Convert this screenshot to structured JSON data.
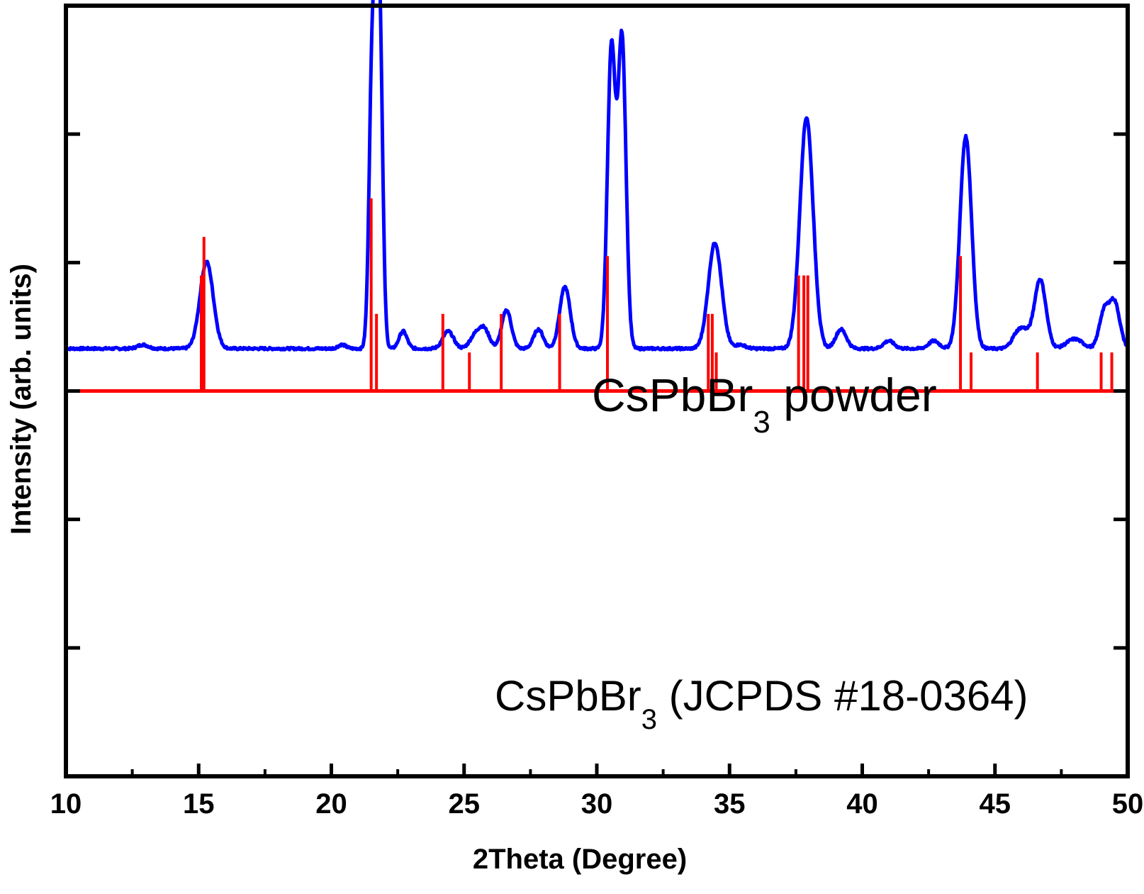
{
  "chart_data": {
    "type": "line",
    "xlabel": "2Theta (Degree)",
    "ylabel": "Intensity (arb. units)",
    "xlim": [
      10,
      50
    ],
    "ylim": [
      -1.0,
      1.0
    ],
    "x_ticks": [
      10,
      15,
      20,
      25,
      30,
      35,
      40,
      45,
      50
    ],
    "x_tick_labels": [
      "10",
      "15",
      "20",
      "25",
      "30",
      "35",
      "40",
      "45",
      "50"
    ],
    "y_tick_labels_shown": false,
    "grid": false,
    "annotations": [
      {
        "main": "CsPbBr",
        "sub": "3",
        "suffix": " powder",
        "series": "powder"
      },
      {
        "main": "CsPbBr",
        "sub": "3",
        "suffix": " (JCPDS #18-0364)",
        "series": "reference"
      }
    ],
    "series": [
      {
        "key": "powder",
        "kind": "line",
        "color": "#0000ff",
        "baseline": 0.22,
        "peaks": [
          {
            "x": 12.9,
            "h": 0.02,
            "w": 0.2
          },
          {
            "x": 15.3,
            "h": 0.45,
            "w": 0.25
          },
          {
            "x": 20.4,
            "h": 0.02,
            "w": 0.15
          },
          {
            "x": 21.55,
            "h": 1.55,
            "w": 0.12
          },
          {
            "x": 21.8,
            "h": 1.85,
            "w": 0.12
          },
          {
            "x": 22.7,
            "h": 0.09,
            "w": 0.15
          },
          {
            "x": 24.4,
            "h": 0.09,
            "w": 0.2
          },
          {
            "x": 25.4,
            "h": 0.06,
            "w": 0.2
          },
          {
            "x": 25.75,
            "h": 0.1,
            "w": 0.2
          },
          {
            "x": 26.6,
            "h": 0.2,
            "w": 0.18
          },
          {
            "x": 27.8,
            "h": 0.1,
            "w": 0.18
          },
          {
            "x": 28.8,
            "h": 0.32,
            "w": 0.2
          },
          {
            "x": 30.55,
            "h": 1.55,
            "w": 0.15
          },
          {
            "x": 30.95,
            "h": 1.6,
            "w": 0.15
          },
          {
            "x": 34.45,
            "h": 0.55,
            "w": 0.25
          },
          {
            "x": 35.4,
            "h": 0.02,
            "w": 0.2
          },
          {
            "x": 37.9,
            "h": 1.2,
            "w": 0.25
          },
          {
            "x": 39.2,
            "h": 0.1,
            "w": 0.2
          },
          {
            "x": 41.0,
            "h": 0.04,
            "w": 0.2
          },
          {
            "x": 42.7,
            "h": 0.04,
            "w": 0.2
          },
          {
            "x": 43.9,
            "h": 1.1,
            "w": 0.22
          },
          {
            "x": 45.8,
            "h": 0.06,
            "w": 0.2
          },
          {
            "x": 46.1,
            "h": 0.08,
            "w": 0.2
          },
          {
            "x": 46.7,
            "h": 0.36,
            "w": 0.22
          },
          {
            "x": 48.0,
            "h": 0.05,
            "w": 0.3
          },
          {
            "x": 49.1,
            "h": 0.18,
            "w": 0.18
          },
          {
            "x": 49.5,
            "h": 0.24,
            "w": 0.2
          }
        ]
      },
      {
        "key": "reference",
        "kind": "stick",
        "color": "#ff0000",
        "baseline": 0.0,
        "sticks": [
          {
            "x": 15.1,
            "h": 0.6
          },
          {
            "x": 15.2,
            "h": 0.8
          },
          {
            "x": 21.5,
            "h": 1.0
          },
          {
            "x": 21.7,
            "h": 0.4
          },
          {
            "x": 24.2,
            "h": 0.4
          },
          {
            "x": 25.2,
            "h": 0.2
          },
          {
            "x": 26.4,
            "h": 0.4
          },
          {
            "x": 28.6,
            "h": 0.4
          },
          {
            "x": 30.4,
            "h": 0.7
          },
          {
            "x": 34.2,
            "h": 0.4
          },
          {
            "x": 34.35,
            "h": 0.4
          },
          {
            "x": 34.5,
            "h": 0.2
          },
          {
            "x": 37.6,
            "h": 0.6
          },
          {
            "x": 37.8,
            "h": 0.6
          },
          {
            "x": 37.95,
            "h": 0.6
          },
          {
            "x": 43.7,
            "h": 0.7
          },
          {
            "x": 44.1,
            "h": 0.2
          },
          {
            "x": 46.6,
            "h": 0.2
          },
          {
            "x": 49.0,
            "h": 0.2
          },
          {
            "x": 49.4,
            "h": 0.2
          }
        ]
      }
    ]
  }
}
